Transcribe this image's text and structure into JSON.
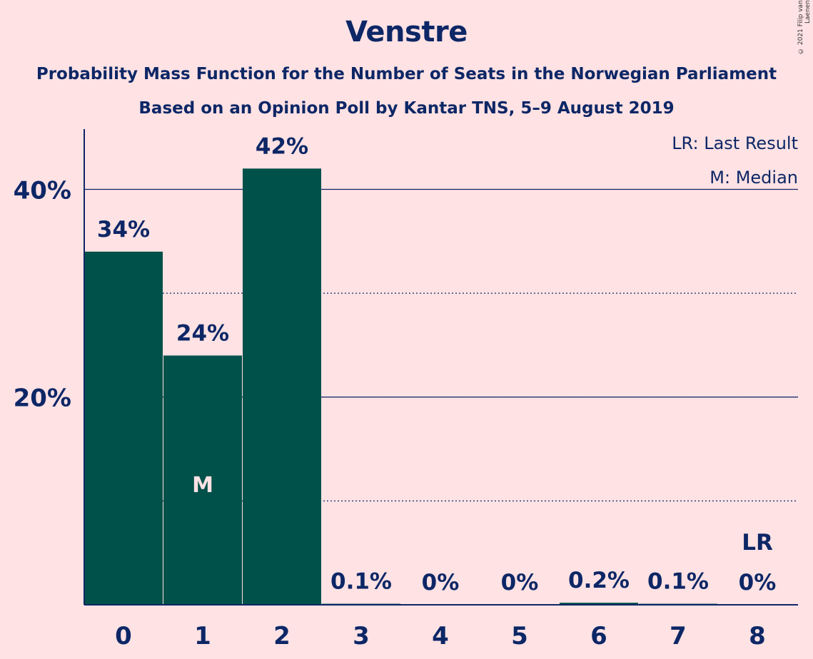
{
  "title": "Venstre",
  "subtitle_1": "Probability Mass Function for the Number of Seats in the Norwegian Parliament",
  "subtitle_2": "Based on an Opinion Poll by Kantar TNS, 5–9 August 2019",
  "copyright": "© 2021 Filip van Laenen",
  "legend": {
    "last_result": "LR: Last Result",
    "median": "M: Median"
  },
  "colors": {
    "background": "#ffe2e4",
    "bar": "#00514a",
    "text": "#0d2766"
  },
  "chart_data": {
    "type": "bar",
    "title": "Venstre",
    "categories": [
      "0",
      "1",
      "2",
      "3",
      "4",
      "5",
      "6",
      "7",
      "8"
    ],
    "values": [
      34,
      24,
      42,
      0.1,
      0,
      0,
      0.2,
      0.1,
      0
    ],
    "value_labels": [
      "34%",
      "24%",
      "42%",
      "0.1%",
      "0%",
      "0%",
      "0.2%",
      "0.1%",
      "0%"
    ],
    "ylim": [
      0,
      45.8
    ],
    "yticks": [
      {
        "value": 20,
        "label": "20%",
        "style": "solid"
      },
      {
        "value": 40,
        "label": "40%",
        "style": "solid"
      }
    ],
    "minor_gridlines": [
      10,
      30
    ],
    "median_index": 1,
    "median_marker": "M",
    "last_result_index": 8,
    "last_result_marker": "LR",
    "grid": true,
    "legend_position": "top-right"
  }
}
